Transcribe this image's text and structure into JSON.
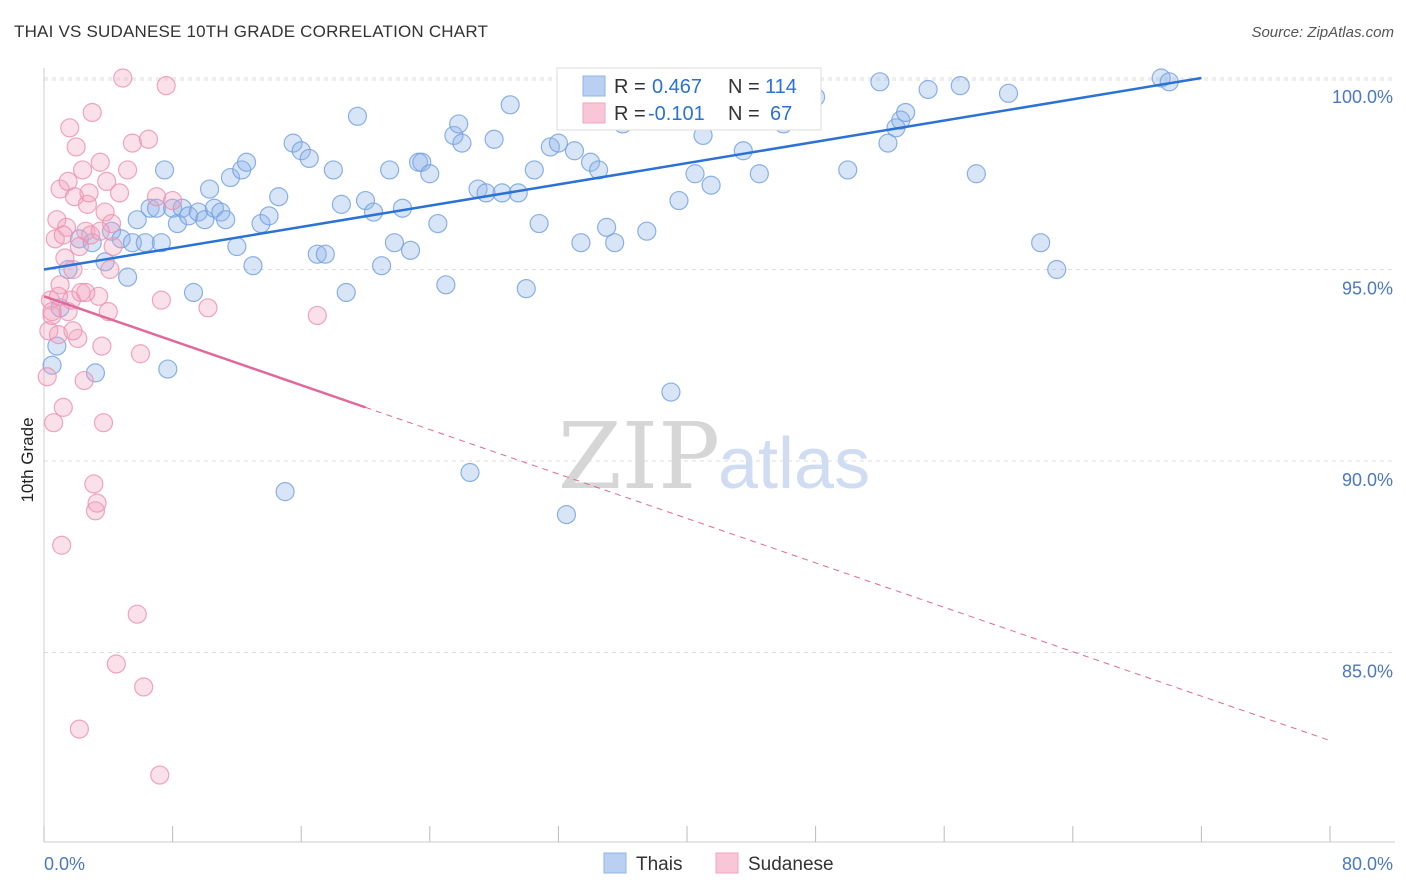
{
  "header": {
    "title": "THAI VS SUDANESE 10TH GRADE CORRELATION CHART",
    "source": "Source: ZipAtlas.com"
  },
  "watermark": {
    "zip": "ZIP",
    "atlas": "atlas"
  },
  "colors": {
    "blue": "#8fb4e8",
    "blue_line": "#2a72d4",
    "pink": "#f2a5bf",
    "pink_line": "#e0689a",
    "tick": "#4a78c2",
    "grid": "#dddddd"
  },
  "chart_data": {
    "type": "scatter",
    "xlabel": "",
    "ylabel": "10th Grade",
    "xlim": [
      0,
      80
    ],
    "ylim": [
      80,
      100.8
    ],
    "x_tick_labels": [
      "0.0%",
      "80.0%"
    ],
    "y_ticks": [
      85,
      90,
      95,
      100
    ],
    "y_tick_labels": [
      "85.0%",
      "90.0%",
      "95.0%",
      "100.0%"
    ],
    "grid": true,
    "legend": {
      "position": "top-center",
      "entries": [
        {
          "r_label": "R =",
          "r_value": "0.467",
          "n_label": "N =",
          "n_value": "114"
        },
        {
          "r_label": "R =",
          "r_value": "-0.101",
          "n_label": "N =",
          "n_value": "67"
        }
      ]
    },
    "series": [
      {
        "name": "Thais",
        "color": "#8fb4e8",
        "trend": {
          "x": [
            0,
            72
          ],
          "y": [
            95.0,
            100.0
          ],
          "dashed_from": null
        },
        "points": [
          [
            0.5,
            92.5
          ],
          [
            0.8,
            93.0
          ],
          [
            1.0,
            94.0
          ],
          [
            1.5,
            95.0
          ],
          [
            2.2,
            95.8
          ],
          [
            3.0,
            95.7
          ],
          [
            3.2,
            92.3
          ],
          [
            3.8,
            95.2
          ],
          [
            4.2,
            96.0
          ],
          [
            4.8,
            95.8
          ],
          [
            5.2,
            94.8
          ],
          [
            5.5,
            95.7
          ],
          [
            5.8,
            96.3
          ],
          [
            6.3,
            95.7
          ],
          [
            6.6,
            96.6
          ],
          [
            7.0,
            96.6
          ],
          [
            7.3,
            95.7
          ],
          [
            7.5,
            97.6
          ],
          [
            7.7,
            92.4
          ],
          [
            8.0,
            96.6
          ],
          [
            8.3,
            96.2
          ],
          [
            8.6,
            96.6
          ],
          [
            9.0,
            96.4
          ],
          [
            9.3,
            94.4
          ],
          [
            9.6,
            96.5
          ],
          [
            10.0,
            96.3
          ],
          [
            10.3,
            97.1
          ],
          [
            10.6,
            96.6
          ],
          [
            11.0,
            96.5
          ],
          [
            11.3,
            96.3
          ],
          [
            11.6,
            97.4
          ],
          [
            12.0,
            95.6
          ],
          [
            12.3,
            97.6
          ],
          [
            12.6,
            97.8
          ],
          [
            13.0,
            95.1
          ],
          [
            13.5,
            96.2
          ],
          [
            14.0,
            96.4
          ],
          [
            14.6,
            96.9
          ],
          [
            15.0,
            89.2
          ],
          [
            15.5,
            98.3
          ],
          [
            16.0,
            98.1
          ],
          [
            16.5,
            97.9
          ],
          [
            17.0,
            95.4
          ],
          [
            17.5,
            95.4
          ],
          [
            18.0,
            97.6
          ],
          [
            18.5,
            96.7
          ],
          [
            18.8,
            94.4
          ],
          [
            19.5,
            99.0
          ],
          [
            20.0,
            96.8
          ],
          [
            20.5,
            96.5
          ],
          [
            21.0,
            95.1
          ],
          [
            21.5,
            97.6
          ],
          [
            21.8,
            95.7
          ],
          [
            22.3,
            96.6
          ],
          [
            22.8,
            95.5
          ],
          [
            23.3,
            97.8
          ],
          [
            23.5,
            97.8
          ],
          [
            24.0,
            97.5
          ],
          [
            24.5,
            96.2
          ],
          [
            25.0,
            94.6
          ],
          [
            25.5,
            98.5
          ],
          [
            25.8,
            98.8
          ],
          [
            26.0,
            98.3
          ],
          [
            26.5,
            89.7
          ],
          [
            27.0,
            97.1
          ],
          [
            27.5,
            97.0
          ],
          [
            28.0,
            98.4
          ],
          [
            28.5,
            97.0
          ],
          [
            29.0,
            99.3
          ],
          [
            29.5,
            97.0
          ],
          [
            30.0,
            94.5
          ],
          [
            30.5,
            97.6
          ],
          [
            30.8,
            96.2
          ],
          [
            31.5,
            98.2
          ],
          [
            32.0,
            98.3
          ],
          [
            32.5,
            88.6
          ],
          [
            33.0,
            98.1
          ],
          [
            33.4,
            95.7
          ],
          [
            34.0,
            97.8
          ],
          [
            34.5,
            97.6
          ],
          [
            35.0,
            96.1
          ],
          [
            35.5,
            95.7
          ],
          [
            36.0,
            98.8
          ],
          [
            36.5,
            100.0
          ],
          [
            37.0,
            98.9
          ],
          [
            37.5,
            96.0
          ],
          [
            38.0,
            100.0
          ],
          [
            38.5,
            99.0
          ],
          [
            39.0,
            91.8
          ],
          [
            39.5,
            96.8
          ],
          [
            40.0,
            99.0
          ],
          [
            40.5,
            97.5
          ],
          [
            41.0,
            98.5
          ],
          [
            41.5,
            97.2
          ],
          [
            42.5,
            99.8
          ],
          [
            43.5,
            98.1
          ],
          [
            44.5,
            97.5
          ],
          [
            45.5,
            100.0
          ],
          [
            46.0,
            98.8
          ],
          [
            48.0,
            99.5
          ],
          [
            50.0,
            97.6
          ],
          [
            52.0,
            99.9
          ],
          [
            52.5,
            98.3
          ],
          [
            53.0,
            98.7
          ],
          [
            53.3,
            98.9
          ],
          [
            53.6,
            99.1
          ],
          [
            55.0,
            99.7
          ],
          [
            57.0,
            99.8
          ],
          [
            58.0,
            97.5
          ],
          [
            60.0,
            99.6
          ],
          [
            62.0,
            95.7
          ],
          [
            63.0,
            95.0
          ],
          [
            69.5,
            100.0
          ],
          [
            70.0,
            99.9
          ]
        ]
      },
      {
        "name": "Sudanese",
        "color": "#f2a5bf",
        "trend": {
          "x": [
            0,
            80
          ],
          "y": [
            94.3,
            82.7
          ],
          "dashed_from": 20
        },
        "points": [
          [
            0.2,
            92.2
          ],
          [
            0.3,
            93.4
          ],
          [
            0.4,
            94.2
          ],
          [
            0.5,
            93.8
          ],
          [
            0.6,
            91.0
          ],
          [
            0.7,
            95.8
          ],
          [
            0.8,
            96.3
          ],
          [
            0.9,
            93.3
          ],
          [
            1.0,
            94.6
          ],
          [
            1.0,
            97.1
          ],
          [
            1.1,
            87.8
          ],
          [
            1.2,
            91.4
          ],
          [
            1.3,
            95.3
          ],
          [
            1.4,
            96.1
          ],
          [
            1.5,
            93.9
          ],
          [
            1.5,
            97.3
          ],
          [
            1.6,
            98.7
          ],
          [
            1.7,
            94.2
          ],
          [
            1.8,
            95.0
          ],
          [
            1.9,
            96.9
          ],
          [
            2.0,
            98.2
          ],
          [
            2.1,
            93.2
          ],
          [
            2.2,
            95.6
          ],
          [
            2.3,
            94.4
          ],
          [
            2.4,
            97.6
          ],
          [
            2.5,
            92.1
          ],
          [
            2.6,
            96.0
          ],
          [
            2.7,
            96.7
          ],
          [
            2.8,
            97.0
          ],
          [
            2.9,
            95.9
          ],
          [
            3.0,
            99.1
          ],
          [
            3.1,
            89.4
          ],
          [
            3.2,
            88.7
          ],
          [
            3.3,
            88.9
          ],
          [
            3.4,
            94.3
          ],
          [
            3.5,
            97.8
          ],
          [
            3.6,
            93.0
          ],
          [
            3.7,
            91.0
          ],
          [
            3.8,
            96.5
          ],
          [
            3.9,
            97.3
          ],
          [
            4.0,
            93.9
          ],
          [
            4.1,
            95.0
          ],
          [
            4.2,
            96.2
          ],
          [
            4.3,
            95.6
          ],
          [
            4.5,
            84.7
          ],
          [
            4.7,
            97.0
          ],
          [
            4.9,
            100.0
          ],
          [
            5.2,
            97.6
          ],
          [
            5.5,
            98.3
          ],
          [
            5.8,
            86.0
          ],
          [
            6.0,
            92.8
          ],
          [
            6.2,
            84.1
          ],
          [
            6.5,
            98.4
          ],
          [
            7.0,
            96.9
          ],
          [
            7.3,
            94.2
          ],
          [
            7.6,
            99.8
          ],
          [
            7.2,
            81.8
          ],
          [
            8.0,
            96.8
          ],
          [
            2.2,
            83.0
          ],
          [
            10.2,
            94.0
          ],
          [
            17.0,
            93.8
          ],
          [
            0.5,
            93.9
          ],
          [
            1.2,
            95.9
          ],
          [
            2.6,
            94.4
          ],
          [
            1.8,
            93.4
          ],
          [
            0.9,
            94.3
          ],
          [
            3.5,
            96.0
          ]
        ]
      }
    ]
  }
}
